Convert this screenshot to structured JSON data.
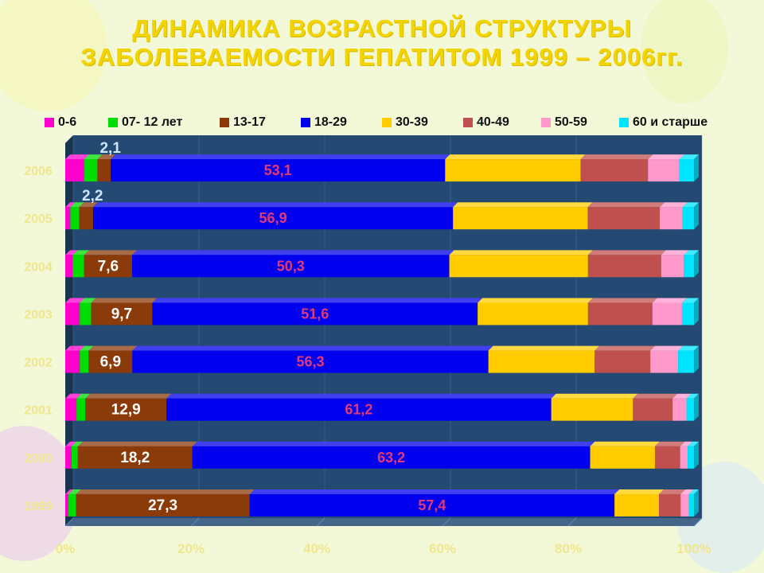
{
  "title": {
    "line1": "ДИНАМИКА ВОЗРАСТНОЙ СТРУКТУРЫ",
    "line2": "ЗАБОЛЕВАЕМОСТИ ГЕПАТИТОМ 1999 – 2006гг."
  },
  "colors": {
    "background": "#f3f9d8",
    "plot_background": "#244a74",
    "title": "#f2d400",
    "axis_label": "#f0e68c",
    "series": [
      "#ff00cc",
      "#00dd00",
      "#8b3a0a",
      "#0000ee",
      "#ffcc00",
      "#c0504d",
      "#ff99cc",
      "#00e5ff"
    ]
  },
  "chart_data": {
    "type": "bar",
    "orientation": "horizontal",
    "stacked": "percent",
    "categories": [
      "1999",
      "2000",
      "2001",
      "2002",
      "2003",
      "2004",
      "2005",
      "2006"
    ],
    "series": [
      {
        "name": "0-6",
        "values": [
          0.5,
          1.0,
          1.8,
          2.3,
          2.3,
          1.2,
          0.8,
          3.0
        ]
      },
      {
        "name": "07- 12 лет",
        "values": [
          1.2,
          1.0,
          1.4,
          1.4,
          1.8,
          1.8,
          1.4,
          2.1
        ]
      },
      {
        "name": "13-17",
        "values": [
          27.3,
          18.2,
          12.9,
          6.9,
          9.7,
          7.6,
          2.2,
          2.1
        ]
      },
      {
        "name": "18-29",
        "values": [
          57.4,
          63.2,
          61.2,
          56.3,
          51.6,
          50.3,
          56.9,
          53.1
        ]
      },
      {
        "name": "30-39",
        "values": [
          7.0,
          10.3,
          13.0,
          16.8,
          17.5,
          22.0,
          21.3,
          21.5
        ]
      },
      {
        "name": "40-49",
        "values": [
          3.4,
          4.0,
          6.3,
          8.8,
          10.2,
          11.6,
          11.4,
          10.7
        ]
      },
      {
        "name": "50-59",
        "values": [
          1.3,
          1.2,
          2.2,
          4.4,
          4.7,
          3.6,
          3.6,
          5.0
        ]
      },
      {
        "name": "60 и старше",
        "values": [
          0.8,
          1.0,
          1.2,
          2.5,
          1.9,
          1.6,
          1.8,
          2.3
        ]
      }
    ],
    "data_labels": {
      "13-17": [
        "27,3",
        "18,2",
        "12,9",
        "6,9",
        "9,7",
        "7,6",
        "2,2",
        "2,1"
      ],
      "18-29": [
        "57,4",
        "63,2",
        "61,2",
        "56,3",
        "51,6",
        "50,3",
        "56,9",
        "53,1"
      ]
    },
    "x_ticks": [
      "0%",
      "20%",
      "40%",
      "60%",
      "80%",
      "100%"
    ],
    "xlim": [
      0,
      100
    ],
    "legend_position": "top",
    "grid": true
  }
}
